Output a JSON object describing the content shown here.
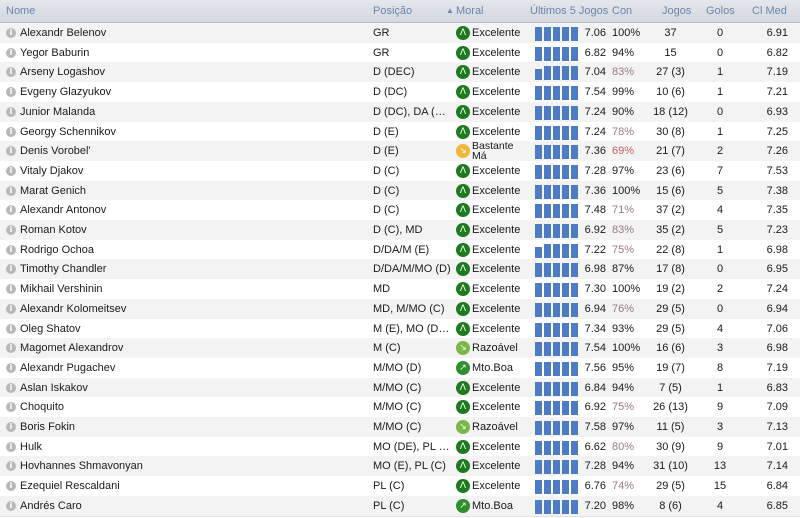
{
  "colors": {
    "bar": "#4e7cc2",
    "moral_excelente": "#1e7a1e",
    "moral_bastante_ma": "#f0b63c",
    "moral_razoavel": "#7ab648",
    "moral_mto_boa": "#2f8f2f",
    "con_low": "#9a7a7a",
    "con_very_low": "#c06060"
  },
  "header": {
    "nome": "Nome",
    "posicao": "Posição",
    "moral": "Moral",
    "ultimos": "Últimos 5 Jogos",
    "con": "Con",
    "jogos": "Jogos",
    "golos": "Golos",
    "clmed": "Cl Med",
    "sort_icon": "sort-ascending-icon"
  },
  "rows": [
    {
      "name": "Alexandr Belenov",
      "pos": "GR",
      "moral": "Excelente",
      "moral_key": "excelente",
      "form": [
        0.9,
        0.9,
        0.9,
        0.9,
        0.9
      ],
      "rating": "7.06",
      "con": "100%",
      "jogos": "37",
      "golos": "0",
      "clmed": "6.91"
    },
    {
      "name": "Yegor Baburin",
      "pos": "GR",
      "moral": "Excelente",
      "moral_key": "excelente",
      "form": [
        0.9,
        0.9,
        0.9,
        0.9,
        0.9
      ],
      "rating": "6.82",
      "con": "94%",
      "jogos": "15",
      "golos": "0",
      "clmed": "6.82"
    },
    {
      "name": "Arseny Logashov",
      "pos": "D (DEC)",
      "moral": "Excelente",
      "moral_key": "excelente",
      "form": [
        0.7,
        0.9,
        0.9,
        0.9,
        0.9
      ],
      "rating": "7.04",
      "con": "83%",
      "jogos": "27 (3)",
      "golos": "1",
      "clmed": "7.19"
    },
    {
      "name": "Evgeny Glazyukov",
      "pos": "D (DC)",
      "moral": "Excelente",
      "moral_key": "excelente",
      "form": [
        0.9,
        0.9,
        0.9,
        0.9,
        0.9
      ],
      "rating": "7.54",
      "con": "99%",
      "jogos": "10 (6)",
      "golos": "1",
      "clmed": "7.21"
    },
    {
      "name": "Junior Malanda",
      "pos": "D (DC), DA (D), ...",
      "moral": "Excelente",
      "moral_key": "excelente",
      "form": [
        0.9,
        0.9,
        0.9,
        0.9,
        0.9
      ],
      "rating": "7.24",
      "con": "90%",
      "jogos": "18 (12)",
      "golos": "0",
      "clmed": "6.93"
    },
    {
      "name": "Georgy Schennikov",
      "pos": "D (E)",
      "moral": "Excelente",
      "moral_key": "excelente",
      "form": [
        0.9,
        0.9,
        0.9,
        0.9,
        0.9
      ],
      "rating": "7.24",
      "con": "78%",
      "jogos": "30 (8)",
      "golos": "1",
      "clmed": "7.25"
    },
    {
      "name": "Denis Vorobel'",
      "pos": "D (E)",
      "moral": "Bastante Má",
      "moral_key": "bastante_ma",
      "form": [
        0.9,
        0.9,
        0.9,
        0.9,
        0.9
      ],
      "rating": "7.36",
      "con": "69%",
      "jogos": "21 (7)",
      "golos": "2",
      "clmed": "7.26"
    },
    {
      "name": "Vitaly Djakov",
      "pos": "D (C)",
      "moral": "Excelente",
      "moral_key": "excelente",
      "form": [
        0.9,
        0.9,
        0.9,
        0.9,
        0.9
      ],
      "rating": "7.28",
      "con": "97%",
      "jogos": "23 (6)",
      "golos": "7",
      "clmed": "7.53"
    },
    {
      "name": "Marat Genich",
      "pos": "D (C)",
      "moral": "Excelente",
      "moral_key": "excelente",
      "form": [
        0.9,
        0.9,
        0.9,
        0.9,
        0.9
      ],
      "rating": "7.36",
      "con": "100%",
      "jogos": "15 (6)",
      "golos": "5",
      "clmed": "7.38"
    },
    {
      "name": "Alexandr Antonov",
      "pos": "D (C)",
      "moral": "Excelente",
      "moral_key": "excelente",
      "form": [
        0.9,
        0.9,
        0.9,
        0.9,
        0.9
      ],
      "rating": "7.48",
      "con": "71%",
      "jogos": "37 (2)",
      "golos": "4",
      "clmed": "7.35"
    },
    {
      "name": "Roman Kotov",
      "pos": "D (C), MD",
      "moral": "Excelente",
      "moral_key": "excelente",
      "form": [
        0.9,
        0.9,
        0.9,
        0.9,
        0.9
      ],
      "rating": "6.92",
      "con": "83%",
      "jogos": "35 (2)",
      "golos": "5",
      "clmed": "7.23"
    },
    {
      "name": "Rodrigo Ochoa",
      "pos": "D/DA/M (E)",
      "moral": "Excelente",
      "moral_key": "excelente",
      "form": [
        0.7,
        0.9,
        0.9,
        0.9,
        0.9
      ],
      "rating": "7.22",
      "con": "75%",
      "jogos": "22 (8)",
      "golos": "1",
      "clmed": "6.98"
    },
    {
      "name": "Timothy Chandler",
      "pos": "D/DA/M/MO (D)",
      "moral": "Excelente",
      "moral_key": "excelente",
      "form": [
        0.9,
        0.9,
        0.9,
        0.9,
        0.9
      ],
      "rating": "6.98",
      "con": "87%",
      "jogos": "17 (8)",
      "golos": "0",
      "clmed": "6.95"
    },
    {
      "name": "Mikhail Vershinin",
      "pos": "MD",
      "moral": "Excelente",
      "moral_key": "excelente",
      "form": [
        0.9,
        0.9,
        0.9,
        0.9,
        0.9
      ],
      "rating": "7.30",
      "con": "100%",
      "jogos": "19 (2)",
      "golos": "2",
      "clmed": "7.24"
    },
    {
      "name": "Alexandr Kolomeitsev",
      "pos": "MD, M/MO (C)",
      "moral": "Excelente",
      "moral_key": "excelente",
      "form": [
        0.9,
        0.9,
        0.9,
        0.9,
        0.9
      ],
      "rating": "6.94",
      "con": "76%",
      "jogos": "29 (5)",
      "golos": "0",
      "clmed": "6.94"
    },
    {
      "name": "Oleg Shatov",
      "pos": "M (E), MO (DEC)",
      "moral": "Excelente",
      "moral_key": "excelente",
      "form": [
        0.9,
        0.9,
        0.9,
        0.9,
        0.9
      ],
      "rating": "7.34",
      "con": "93%",
      "jogos": "29 (5)",
      "golos": "4",
      "clmed": "7.06"
    },
    {
      "name": "Magomet Alexandrov",
      "pos": "M (C)",
      "moral": "Razoável",
      "moral_key": "razoavel",
      "form": [
        0.9,
        0.9,
        0.9,
        0.9,
        0.9
      ],
      "rating": "7.54",
      "con": "100%",
      "jogos": "16 (6)",
      "golos": "3",
      "clmed": "6.98"
    },
    {
      "name": "Alexandr Pugachev",
      "pos": "M/MO (D)",
      "moral": "Mto.Boa",
      "moral_key": "mto_boa",
      "form": [
        0.9,
        0.9,
        0.9,
        0.9,
        0.9
      ],
      "rating": "7.56",
      "con": "95%",
      "jogos": "19 (7)",
      "golos": "8",
      "clmed": "7.19"
    },
    {
      "name": "Aslan Iskakov",
      "pos": "M/MO (C)",
      "moral": "Excelente",
      "moral_key": "excelente",
      "form": [
        0.9,
        0.9,
        0.9,
        0.9,
        0.9
      ],
      "rating": "6.84",
      "con": "94%",
      "jogos": "7 (5)",
      "golos": "1",
      "clmed": "6.83"
    },
    {
      "name": "Choquito",
      "pos": "M/MO (C)",
      "moral": "Excelente",
      "moral_key": "excelente",
      "form": [
        0.9,
        0.9,
        0.9,
        0.9,
        0.9
      ],
      "rating": "6.92",
      "con": "75%",
      "jogos": "26 (13)",
      "golos": "9",
      "clmed": "7.09"
    },
    {
      "name": "Boris Fokin",
      "pos": "M/MO (C)",
      "moral": "Razoável",
      "moral_key": "razoavel",
      "form": [
        0.9,
        0.9,
        0.9,
        0.9,
        0.9
      ],
      "rating": "7.58",
      "con": "97%",
      "jogos": "11 (5)",
      "golos": "3",
      "clmed": "7.13"
    },
    {
      "name": "Hulk",
      "pos": "MO (DE), PL (C)",
      "moral": "Excelente",
      "moral_key": "excelente",
      "form": [
        0.9,
        0.9,
        0.9,
        0.9,
        0.9
      ],
      "rating": "6.62",
      "con": "80%",
      "jogos": "30 (9)",
      "golos": "9",
      "clmed": "7.01"
    },
    {
      "name": "Hovhannes Shmavonyan",
      "pos": "MO (E), PL (C)",
      "moral": "Excelente",
      "moral_key": "excelente",
      "form": [
        0.9,
        0.9,
        0.9,
        0.9,
        0.9
      ],
      "rating": "7.28",
      "con": "94%",
      "jogos": "31 (10)",
      "golos": "13",
      "clmed": "7.14"
    },
    {
      "name": "Ezequiel Rescaldani",
      "pos": "PL (C)",
      "moral": "Excelente",
      "moral_key": "excelente",
      "form": [
        0.9,
        0.9,
        0.9,
        0.9,
        0.9
      ],
      "rating": "6.76",
      "con": "74%",
      "jogos": "29 (5)",
      "golos": "15",
      "clmed": "6.84"
    },
    {
      "name": "Andrés Caro",
      "pos": "PL (C)",
      "moral": "Mto.Boa",
      "moral_key": "mto_boa",
      "form": [
        0.9,
        0.9,
        0.9,
        0.9,
        0.9
      ],
      "rating": "7.20",
      "con": "98%",
      "jogos": "8 (6)",
      "golos": "4",
      "clmed": "6.85"
    }
  ]
}
